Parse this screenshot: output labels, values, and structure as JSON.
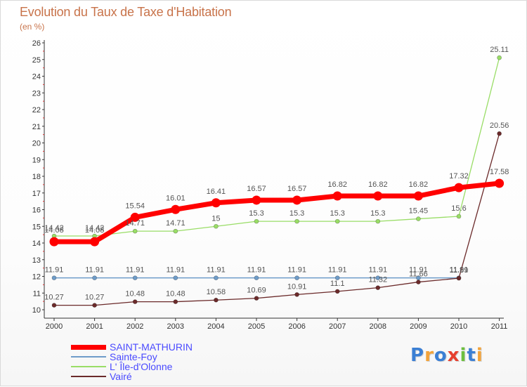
{
  "title": "Evolution du Taux de Taxe d'Habitation",
  "subtitle": "(en %)",
  "logo": [
    "P",
    "r",
    "o",
    "x",
    "i",
    "t",
    "i"
  ],
  "logo_colors": [
    "#3b7fd4",
    "#f2a33a",
    "#3b7fd4",
    "#e6402f",
    "#6cbf3f",
    "#3b7fd4",
    "#f2a33a"
  ],
  "chart_data": {
    "type": "line",
    "x": [
      "2000",
      "2001",
      "2002",
      "2003",
      "2004",
      "2005",
      "2006",
      "2007",
      "2008",
      "2009",
      "2010",
      "2011"
    ],
    "ylim": [
      10,
      26
    ],
    "yticks": [
      10,
      11,
      12,
      13,
      14,
      15,
      16,
      17,
      18,
      19,
      20,
      21,
      22,
      23,
      24,
      25,
      26
    ],
    "grid": false,
    "legend": "bottom-left",
    "series": [
      {
        "name": "SAINT-MATHURIN",
        "color": "#ff0000",
        "values": [
          14.08,
          14.08,
          15.54,
          16.01,
          16.41,
          16.57,
          16.57,
          16.82,
          16.82,
          16.82,
          17.32,
          17.58
        ],
        "labels": [
          "14.08",
          "14.08",
          "15.54",
          "16.01",
          "16.41",
          "16.57",
          "16.57",
          "16.82",
          "16.82",
          "16.82",
          "17.32",
          "17.58"
        ]
      },
      {
        "name": "Sainte-Foy",
        "color": "#6e9cc9",
        "values": [
          11.91,
          11.91,
          11.91,
          11.91,
          11.91,
          11.91,
          11.91,
          11.91,
          11.91,
          11.91,
          11.91,
          null
        ],
        "labels": [
          "11.91",
          "11.91",
          "11.91",
          "11.91",
          "11.91",
          "11.91",
          "11.91",
          "11.91",
          "11.91",
          "11.91",
          "11.91",
          ""
        ]
      },
      {
        "name": "L' Île-d'Olonne",
        "color": "#99dd66",
        "values": [
          14.42,
          14.42,
          14.71,
          14.71,
          15,
          15.3,
          15.3,
          15.3,
          15.3,
          15.45,
          15.6,
          25.11
        ],
        "labels": [
          "14.42",
          "14.42",
          "14.71",
          "14.71",
          "15",
          "15.3",
          "15.3",
          "15.3",
          "15.3",
          "15.45",
          "15.6",
          "25.11"
        ]
      },
      {
        "name": "Vairé",
        "color": "#6b2a2a",
        "values": [
          10.27,
          10.27,
          10.48,
          10.48,
          10.58,
          10.69,
          10.91,
          11.1,
          11.32,
          11.66,
          11.89,
          20.56
        ],
        "labels": [
          "10.27",
          "10.27",
          "10.48",
          "10.48",
          "10.58",
          "10.69",
          "10.91",
          "11.1",
          "11.32",
          "11.66",
          "11.89",
          "20.56"
        ]
      }
    ]
  }
}
